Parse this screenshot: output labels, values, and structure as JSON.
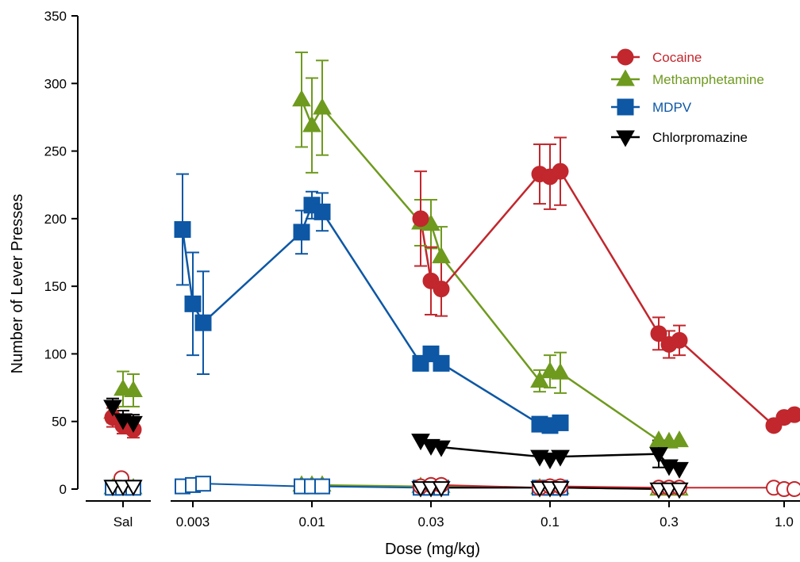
{
  "chart_data": {
    "type": "line",
    "xlabel": "Dose (mg/kg)",
    "ylabel": "Number of Lever Presses",
    "ylim": [
      0,
      350
    ],
    "yticks": [
      0,
      50,
      100,
      150,
      200,
      250,
      300,
      350
    ],
    "categories": [
      "Sal",
      "0.003",
      "0.01",
      "0.03",
      "0.1",
      "0.3",
      "1.0"
    ],
    "axis_break_after": "Sal",
    "legend_position": "top-right",
    "series": [
      {
        "name": "Cocaine",
        "color": "#c1272d",
        "marker": "circle",
        "saline": [
          {
            "y": 53,
            "err": 7
          },
          {
            "y": 47,
            "err": 6
          },
          {
            "y": 44,
            "err": 6
          }
        ],
        "groups": [
          {
            "dose": "0.03",
            "points": [
              {
                "y": 200,
                "err": 35
              },
              {
                "y": 154,
                "err": 25
              },
              {
                "y": 148,
                "err": 20
              }
            ]
          },
          {
            "dose": "0.1",
            "points": [
              {
                "y": 233,
                "err": 22
              },
              {
                "y": 231,
                "err": 24
              },
              {
                "y": 235,
                "err": 25
              }
            ]
          },
          {
            "dose": "0.3",
            "points": [
              {
                "y": 115,
                "err": 12
              },
              {
                "y": 107,
                "err": 10
              },
              {
                "y": 110,
                "err": 11
              }
            ]
          },
          {
            "dose": "1.0",
            "points": [
              {
                "y": 47,
                "err": 0
              },
              {
                "y": 53,
                "err": 0
              },
              {
                "y": 55,
                "err": 0
              }
            ]
          }
        ],
        "extinction_saline": [
          {
            "y": 8
          }
        ],
        "extinction": [
          {
            "dose": "0.03",
            "points": [
              {
                "y": 2
              },
              {
                "y": 3
              },
              {
                "y": 3
              }
            ]
          },
          {
            "dose": "0.1",
            "points": [
              {
                "y": 1
              },
              {
                "y": 2
              },
              {
                "y": 2
              }
            ]
          },
          {
            "dose": "0.3",
            "points": [
              {
                "y": 1
              },
              {
                "y": 1
              },
              {
                "y": 1
              }
            ]
          },
          {
            "dose": "1.0",
            "points": [
              {
                "y": 1
              },
              {
                "y": 0
              },
              {
                "y": 0
              }
            ]
          }
        ]
      },
      {
        "name": "Methamphetamine",
        "color": "#6e9a1e",
        "marker": "triangle-up",
        "saline": [
          {
            "y": 57,
            "err": 8
          },
          {
            "y": 74,
            "err": 13
          },
          {
            "y": 73,
            "err": 12
          }
        ],
        "groups": [
          {
            "dose": "0.01",
            "points": [
              {
                "y": 288,
                "err": 35
              },
              {
                "y": 269,
                "err": 35
              },
              {
                "y": 282,
                "err": 35
              }
            ]
          },
          {
            "dose": "0.03",
            "points": [
              {
                "y": 197,
                "err": 17
              },
              {
                "y": 196,
                "err": 18
              },
              {
                "y": 172,
                "err": 22
              }
            ]
          },
          {
            "dose": "0.1",
            "points": [
              {
                "y": 80,
                "err": 8
              },
              {
                "y": 87,
                "err": 12
              },
              {
                "y": 86,
                "err": 15
              }
            ]
          },
          {
            "dose": "0.3",
            "points": [
              {
                "y": 36,
                "err": 0
              },
              {
                "y": 35,
                "err": 0
              },
              {
                "y": 36,
                "err": 0
              }
            ]
          }
        ],
        "extinction_saline": [
          {
            "y": 1
          },
          {
            "y": 1
          },
          {
            "y": 1
          }
        ],
        "extinction": [
          {
            "dose": "0.01",
            "points": [
              {
                "y": 3
              },
              {
                "y": 3
              },
              {
                "y": 3
              }
            ]
          },
          {
            "dose": "0.03",
            "points": [
              {
                "y": 2
              },
              {
                "y": 2
              },
              {
                "y": 2
              }
            ]
          },
          {
            "dose": "0.1",
            "points": [
              {
                "y": 1
              },
              {
                "y": 1
              },
              {
                "y": 1
              }
            ]
          },
          {
            "dose": "0.3",
            "points": [
              {
                "y": 0
              },
              {
                "y": 0
              },
              {
                "y": 0
              }
            ]
          }
        ]
      },
      {
        "name": "MDPV",
        "color": "#0d57a5",
        "marker": "square",
        "saline": [],
        "groups": [
          {
            "dose": "0.003",
            "points": [
              {
                "y": 192,
                "err": 41
              },
              {
                "y": 137,
                "err": 38
              },
              {
                "y": 123,
                "err": 38
              }
            ]
          },
          {
            "dose": "0.01",
            "points": [
              {
                "y": 190,
                "err": 16
              },
              {
                "y": 210,
                "err": 10
              },
              {
                "y": 205,
                "err": 14
              }
            ]
          },
          {
            "dose": "0.03",
            "points": [
              {
                "y": 93,
                "err": 0
              },
              {
                "y": 100,
                "err": 0
              },
              {
                "y": 93,
                "err": 0
              }
            ]
          },
          {
            "dose": "0.1",
            "points": [
              {
                "y": 48,
                "err": 0
              },
              {
                "y": 47,
                "err": 0
              },
              {
                "y": 49,
                "err": 0
              }
            ]
          }
        ],
        "extinction_saline": [
          {
            "y": 1
          },
          {
            "y": 1
          },
          {
            "y": 1
          }
        ],
        "extinction": [
          {
            "dose": "0.003",
            "points": [
              {
                "y": 2
              },
              {
                "y": 3
              },
              {
                "y": 4
              }
            ]
          },
          {
            "dose": "0.01",
            "points": [
              {
                "y": 2
              },
              {
                "y": 2
              },
              {
                "y": 2
              }
            ]
          },
          {
            "dose": "0.03",
            "points": [
              {
                "y": 1
              },
              {
                "y": 1
              },
              {
                "y": 1
              }
            ]
          },
          {
            "dose": "0.1",
            "points": [
              {
                "y": 1
              },
              {
                "y": 1
              },
              {
                "y": 1
              }
            ]
          }
        ]
      },
      {
        "name": "Chlorpromazine",
        "color": "#000000",
        "marker": "triangle-down",
        "saline": [
          {
            "y": 61,
            "err": 6
          },
          {
            "y": 51,
            "err": 7
          },
          {
            "y": 49,
            "err": 6
          }
        ],
        "groups": [
          {
            "dose": "0.03",
            "points": [
              {
                "y": 36,
                "err": 0
              },
              {
                "y": 32,
                "err": 0
              },
              {
                "y": 31,
                "err": 0
              }
            ]
          },
          {
            "dose": "0.1",
            "points": [
              {
                "y": 24,
                "err": 0
              },
              {
                "y": 22,
                "err": 0
              },
              {
                "y": 24,
                "err": 0
              }
            ]
          },
          {
            "dose": "0.3",
            "points": [
              {
                "y": 26,
                "err": 10
              },
              {
                "y": 17,
                "err": 0
              },
              {
                "y": 15,
                "err": 0
              }
            ]
          }
        ],
        "extinction_saline": [
          {
            "y": 2
          },
          {
            "y": 2
          },
          {
            "y": 2
          }
        ],
        "extinction": [
          {
            "dose": "0.03",
            "points": [
              {
                "y": 1
              },
              {
                "y": 1
              },
              {
                "y": 1
              }
            ]
          },
          {
            "dose": "0.1",
            "points": [
              {
                "y": 1
              },
              {
                "y": 1
              },
              {
                "y": 1
              }
            ]
          },
          {
            "dose": "0.3",
            "points": [
              {
                "y": 0
              },
              {
                "y": 0
              },
              {
                "y": 0
              }
            ]
          }
        ]
      }
    ]
  }
}
